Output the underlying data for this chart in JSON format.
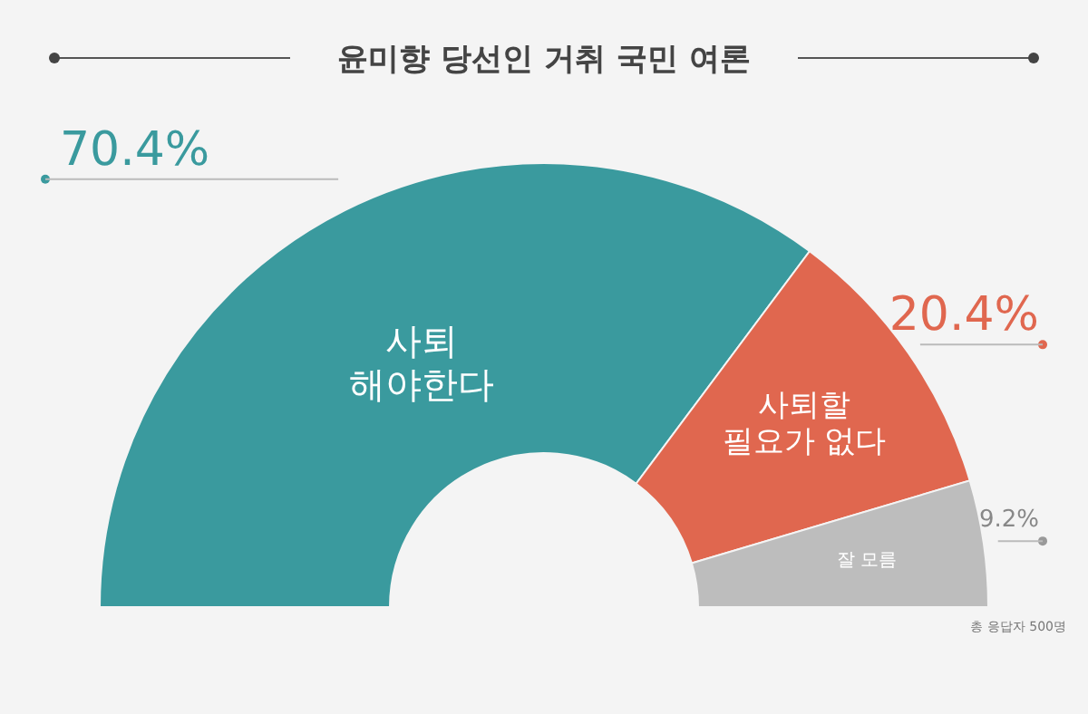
{
  "chart_data": {
    "type": "donut",
    "title": "윤미향 당선인 거취 국민 여론",
    "categories": [
      "사퇴\n해야한다",
      "사퇴할\n필요가 없다",
      "잘 모름"
    ],
    "values": [
      70.4,
      20.4,
      9.2
    ],
    "colors": [
      "#3a9a9e",
      "#e0674f",
      "#bdbdbd"
    ],
    "value_labels": [
      "70.4%",
      "20.4%",
      "9.2%"
    ],
    "annotations": [
      "총 응답자 500명"
    ]
  }
}
